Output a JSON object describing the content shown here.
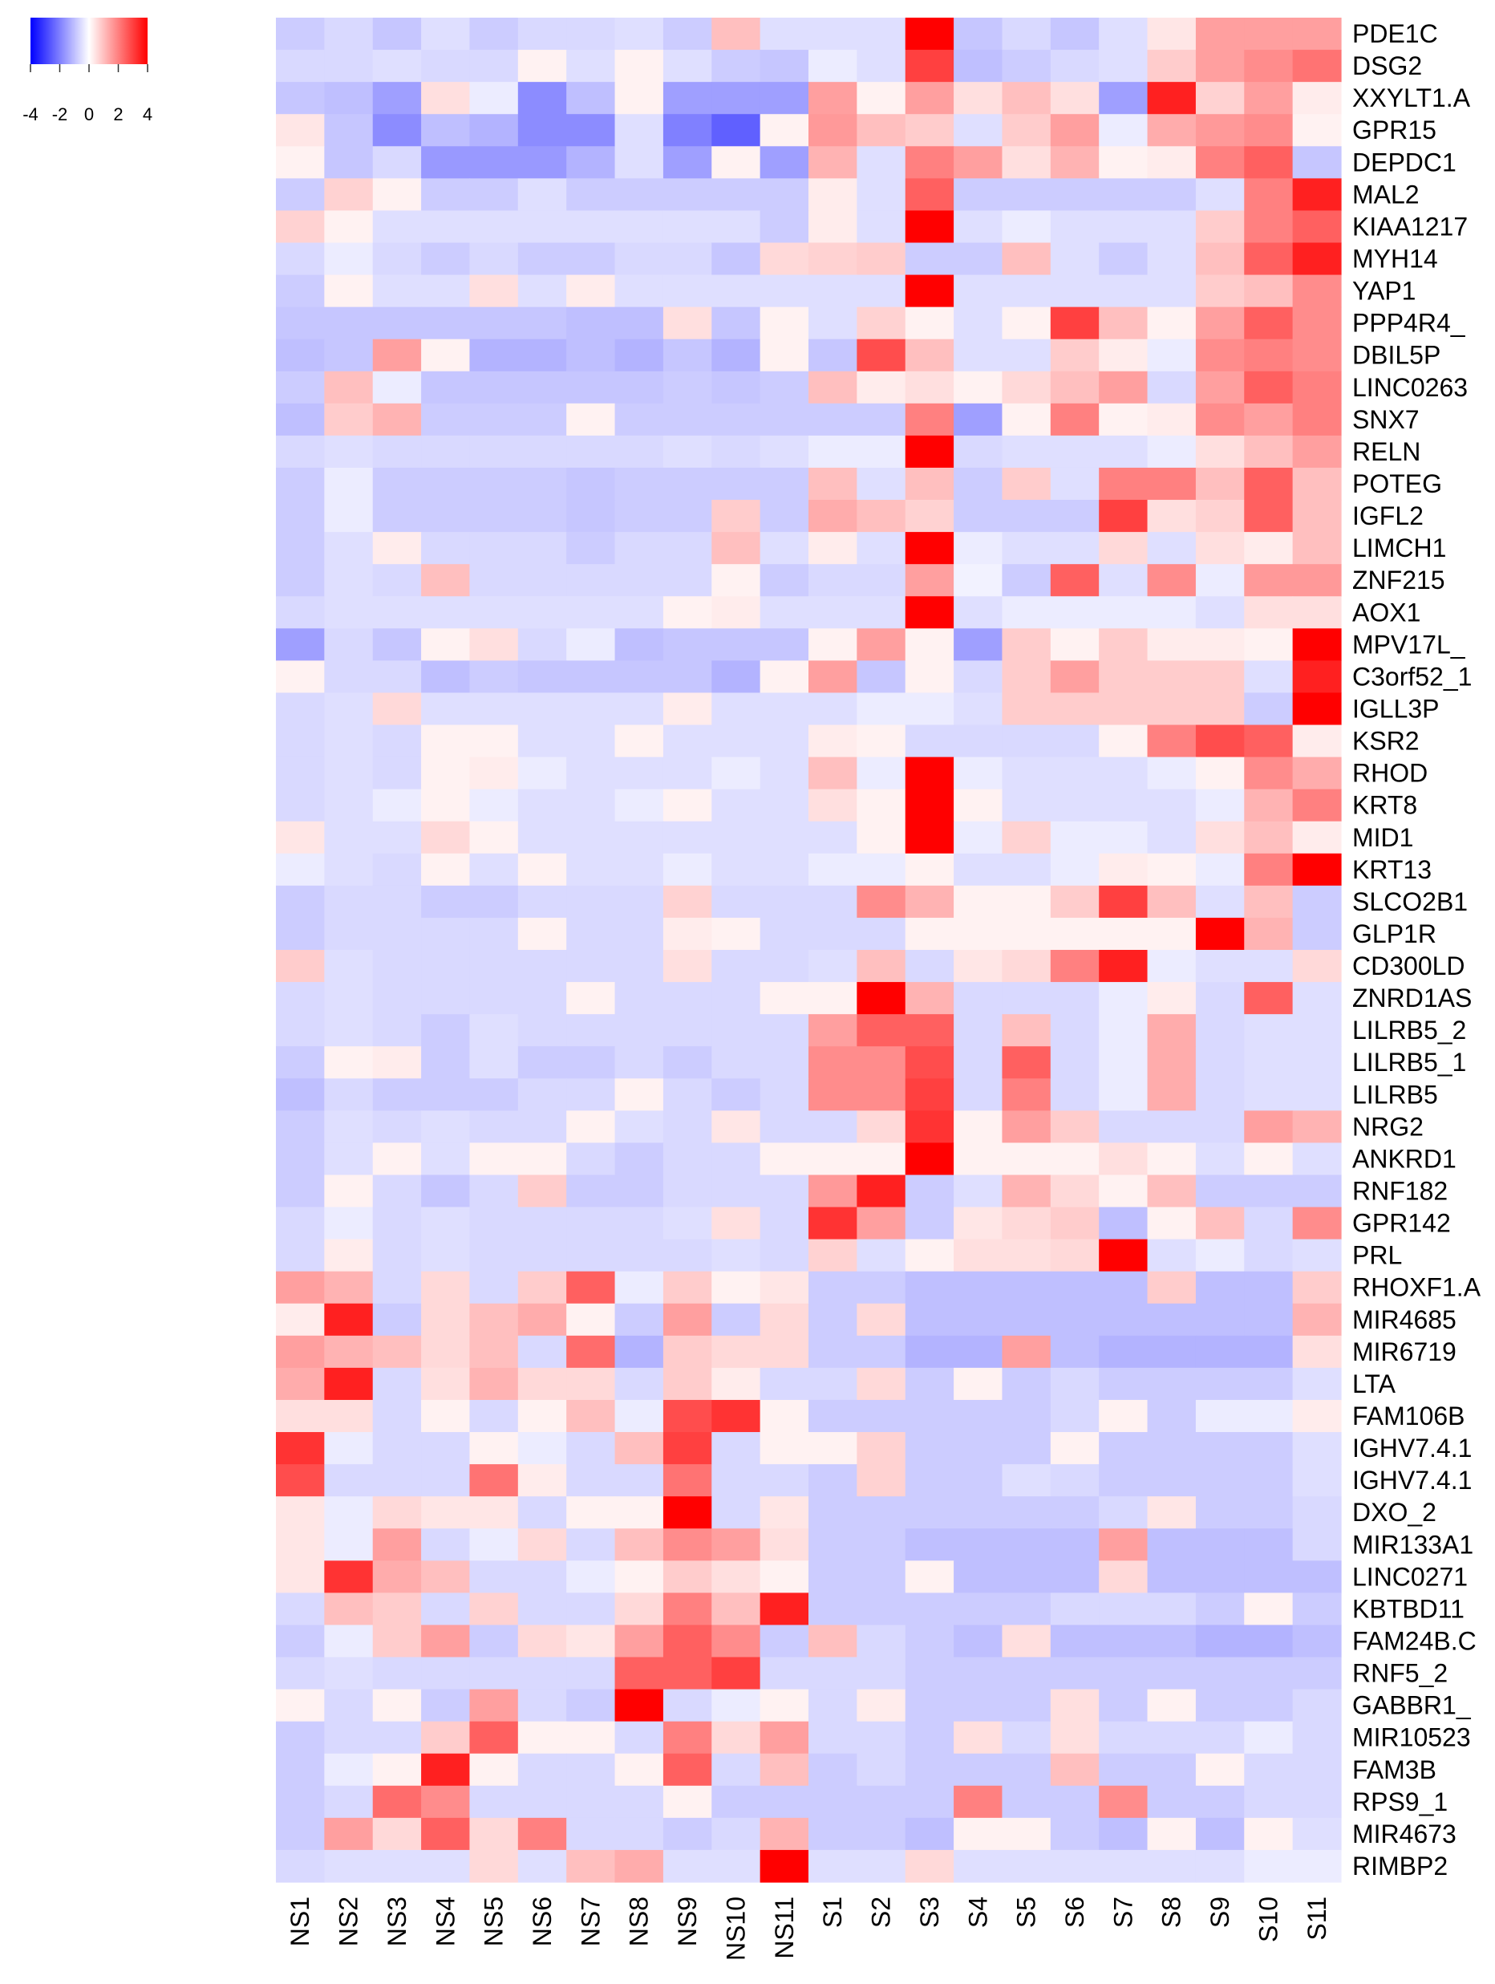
{
  "chart_data": {
    "type": "heatmap",
    "title": "",
    "xlabel": "",
    "ylabel": "",
    "columns": [
      "NS1",
      "NS2",
      "NS3",
      "NS4",
      "NS5",
      "NS6",
      "NS7",
      "NS8",
      "NS9",
      "NS10",
      "NS11",
      "S1",
      "S2",
      "S3",
      "S4",
      "S5",
      "S6",
      "S7",
      "S8",
      "S9",
      "S10",
      "S11"
    ],
    "rows": [
      "PDE1C",
      "DSG2",
      "XXYLT1.A",
      "GPR15",
      "DEPDC1",
      "MAL2",
      "KIAA1217",
      "MYH14",
      "YAP1",
      "PPP4R4_",
      "DBIL5P",
      "LINC0263",
      "SNX7",
      "RELN",
      "POTEG",
      "IGFL2",
      "LIMCH1",
      "ZNF215",
      "AOX1",
      "MPV17L_",
      "C3orf52_1",
      "IGLL3P",
      "KSR2",
      "RHOD",
      "KRT8",
      "MID1",
      "KRT13",
      "SLCO2B1",
      "GLP1R",
      "CD300LD",
      "ZNRD1AS",
      "LILRB5_2",
      "LILRB5_1",
      "LILRB5",
      "NRG2",
      "ANKRD1",
      "RNF182",
      "GPR142",
      "PRL",
      "RHOXF1.A",
      "MIR4685",
      "MIR6719",
      "LTA",
      "FAM106B",
      "IGHV7.4.1",
      "IGHV7.4.1",
      "DXO_2",
      "MIR133A1",
      "LINC0271",
      "KBTBD11",
      "FAM24B.C",
      "RNF5_2",
      "GABBR1_",
      "MIR10523",
      "FAM3B",
      "RPS9_1",
      "MIR4673",
      "RIMBP2"
    ],
    "values": [
      [
        -0.8,
        -0.6,
        -0.9,
        -0.5,
        -0.8,
        -0.6,
        -0.6,
        -0.5,
        -0.8,
        1,
        -0.5,
        -0.5,
        -0.5,
        4,
        -0.9,
        -0.6,
        -0.9,
        -0.5,
        0.4,
        1.5,
        1.5,
        1.5
      ],
      [
        -0.6,
        -0.6,
        -0.5,
        -0.6,
        -0.6,
        0.2,
        -0.5,
        0.2,
        -0.5,
        -0.8,
        -0.9,
        -0.3,
        -0.5,
        3,
        -1,
        -0.8,
        -0.6,
        -0.5,
        0.8,
        1.5,
        1.8,
        2.2
      ],
      [
        -0.9,
        -1,
        -1.5,
        0.5,
        -0.3,
        -1.8,
        -1,
        0.2,
        -1.5,
        -1.5,
        -1.5,
        1.5,
        0.2,
        1.5,
        0.5,
        1,
        0.5,
        -1.5,
        3.5,
        0.7,
        1.5,
        0.3
      ],
      [
        0.4,
        -0.9,
        -1.8,
        -1,
        -1.2,
        -1.8,
        -1.8,
        -0.5,
        -2,
        -2.5,
        0.2,
        1.6,
        1,
        0.8,
        -0.5,
        0.8,
        1.5,
        -0.3,
        1.3,
        1.6,
        1.8,
        0.2
      ],
      [
        0.2,
        -0.9,
        -0.6,
        -1.6,
        -1.6,
        -1.6,
        -1.2,
        -0.5,
        -1.5,
        0.2,
        -1.5,
        1.2,
        -0.5,
        2,
        1.5,
        0.5,
        1.2,
        0.2,
        0.3,
        2,
        2.5,
        -0.9
      ],
      [
        -0.8,
        0.7,
        0.2,
        -0.8,
        -0.8,
        -0.5,
        -0.8,
        -0.8,
        -0.8,
        -0.8,
        -0.8,
        0.3,
        -0.5,
        2.5,
        -0.8,
        -0.8,
        -0.8,
        -0.8,
        -0.8,
        -0.5,
        2,
        3.5
      ],
      [
        0.7,
        0.2,
        -0.5,
        -0.5,
        -0.5,
        -0.5,
        -0.5,
        -0.5,
        -0.5,
        -0.5,
        -0.8,
        0.3,
        -0.5,
        4,
        -0.5,
        -0.3,
        -0.5,
        -0.5,
        -0.5,
        0.8,
        2,
        2.5
      ],
      [
        -0.6,
        -0.3,
        -0.6,
        -0.8,
        -0.6,
        -0.8,
        -0.8,
        -0.6,
        -0.6,
        -0.9,
        0.6,
        0.7,
        0.8,
        -0.8,
        -0.8,
        1,
        -0.5,
        -0.8,
        -0.5,
        1,
        2.5,
        3.5
      ],
      [
        -0.8,
        0.2,
        -0.5,
        -0.5,
        0.5,
        -0.5,
        0.3,
        -0.5,
        -0.5,
        -0.5,
        -0.5,
        -0.5,
        -0.5,
        4,
        -0.5,
        -0.5,
        -0.5,
        -0.5,
        -0.5,
        0.8,
        1,
        1.8
      ],
      [
        -0.9,
        -0.9,
        -0.9,
        -0.9,
        -0.9,
        -0.9,
        -1,
        -1,
        0.5,
        -0.9,
        0.2,
        -0.5,
        0.7,
        0.2,
        -0.5,
        0.2,
        3,
        1,
        0.2,
        1.5,
        2.5,
        1.8
      ],
      [
        -1,
        -0.9,
        1.5,
        0.2,
        -1.2,
        -1.2,
        -1,
        -1.2,
        -0.9,
        -1.2,
        0.2,
        -0.9,
        2.8,
        1,
        -0.5,
        -0.5,
        0.8,
        0.3,
        -0.3,
        1.8,
        2,
        1.8
      ],
      [
        -0.8,
        1,
        -0.3,
        -0.9,
        -0.9,
        -0.9,
        -0.9,
        -0.9,
        -0.8,
        -0.9,
        -0.8,
        1,
        0.3,
        0.5,
        0.2,
        0.6,
        1,
        1.5,
        -0.6,
        1.5,
        2.5,
        2
      ],
      [
        -1,
        0.8,
        1.2,
        -0.8,
        -0.8,
        -0.8,
        0.2,
        -0.8,
        -0.8,
        -0.8,
        -0.8,
        -0.8,
        -0.8,
        2,
        -1.5,
        0.2,
        2,
        0.2,
        0.3,
        1.8,
        1.5,
        2
      ],
      [
        -0.6,
        -0.5,
        -0.6,
        -0.6,
        -0.6,
        -0.6,
        -0.6,
        -0.6,
        -0.5,
        -0.6,
        -0.5,
        -0.3,
        -0.3,
        4,
        -0.6,
        -0.5,
        -0.5,
        -0.5,
        -0.3,
        0.5,
        1,
        1.5
      ],
      [
        -0.8,
        -0.3,
        -0.8,
        -0.8,
        -0.8,
        -0.8,
        -0.9,
        -0.8,
        -0.8,
        -0.8,
        -0.8,
        1,
        -0.5,
        1,
        -0.8,
        0.8,
        -0.5,
        2,
        2,
        1,
        2.5,
        1
      ],
      [
        -0.8,
        -0.3,
        -0.8,
        -0.8,
        -0.8,
        -0.8,
        -0.9,
        -0.8,
        -0.8,
        0.8,
        -0.8,
        1.3,
        1,
        0.7,
        -0.8,
        -0.8,
        -0.8,
        3,
        0.5,
        0.7,
        2.5,
        1
      ],
      [
        -0.8,
        -0.5,
        0.3,
        -0.6,
        -0.6,
        -0.6,
        -0.8,
        -0.6,
        -0.6,
        1,
        -0.5,
        0.3,
        -0.5,
        4,
        -0.3,
        -0.5,
        -0.5,
        0.6,
        -0.5,
        0.5,
        0.3,
        1
      ],
      [
        -0.8,
        -0.5,
        -0.6,
        1,
        -0.6,
        -0.6,
        -0.6,
        -0.6,
        -0.6,
        0.2,
        -0.8,
        -0.6,
        -0.6,
        1.5,
        -0.2,
        -0.8,
        2.5,
        -0.5,
        1.8,
        -0.3,
        1.6,
        1.6
      ],
      [
        -0.6,
        -0.5,
        -0.5,
        -0.5,
        -0.5,
        -0.5,
        -0.5,
        -0.5,
        0.2,
        0.3,
        -0.5,
        -0.5,
        -0.5,
        4,
        -0.5,
        -0.3,
        -0.3,
        -0.3,
        -0.3,
        -0.5,
        0.5,
        0.5
      ],
      [
        -1.5,
        -0.6,
        -0.9,
        0.2,
        0.5,
        -0.6,
        -0.3,
        -1,
        -0.9,
        -0.9,
        -0.9,
        0.2,
        1.5,
        0.2,
        -1.5,
        0.8,
        0.2,
        0.8,
        0.3,
        0.3,
        0.2,
        4
      ],
      [
        0.2,
        -0.6,
        -0.6,
        -1,
        -0.8,
        -0.9,
        -0.9,
        -0.9,
        -0.9,
        -1.2,
        0.2,
        1.5,
        -0.9,
        0.2,
        -0.6,
        0.8,
        1.5,
        0.8,
        0.8,
        0.8,
        -0.5,
        3.5
      ],
      [
        -0.6,
        -0.5,
        0.6,
        -0.5,
        -0.5,
        -0.5,
        -0.5,
        -0.5,
        0.3,
        -0.5,
        -0.5,
        -0.5,
        -0.3,
        -0.3,
        -0.5,
        0.8,
        0.8,
        0.8,
        0.8,
        0.8,
        -0.8,
        4
      ],
      [
        -0.6,
        -0.5,
        -0.6,
        0.2,
        0.2,
        -0.5,
        -0.5,
        0.2,
        -0.5,
        -0.5,
        -0.5,
        0.3,
        0.2,
        -0.6,
        -0.6,
        -0.6,
        -0.6,
        0.2,
        2,
        2.8,
        2.5,
        0.3
      ],
      [
        -0.6,
        -0.5,
        -0.6,
        0.2,
        0.3,
        -0.3,
        -0.5,
        -0.5,
        -0.5,
        -0.3,
        -0.5,
        1,
        -0.3,
        4,
        -0.3,
        -0.5,
        -0.5,
        -0.5,
        -0.3,
        0.2,
        1.8,
        1.3
      ],
      [
        -0.6,
        -0.5,
        -0.3,
        0.2,
        -0.3,
        -0.5,
        -0.5,
        -0.3,
        0.2,
        -0.5,
        -0.5,
        0.5,
        0.2,
        4,
        0.2,
        -0.5,
        -0.5,
        -0.5,
        -0.5,
        -0.3,
        1.2,
        2
      ],
      [
        0.4,
        -0.5,
        -0.5,
        0.6,
        0.2,
        -0.5,
        -0.5,
        -0.5,
        -0.5,
        -0.5,
        -0.5,
        -0.5,
        0.2,
        4,
        -0.3,
        0.7,
        -0.3,
        -0.3,
        -0.5,
        0.5,
        1,
        0.3
      ],
      [
        -0.3,
        -0.5,
        -0.6,
        0.2,
        -0.5,
        0.2,
        -0.5,
        -0.5,
        -0.3,
        -0.5,
        -0.5,
        -0.3,
        -0.3,
        0.2,
        -0.5,
        -0.5,
        -0.3,
        0.3,
        0.2,
        -0.3,
        2,
        4
      ],
      [
        -0.8,
        -0.6,
        -0.6,
        -0.8,
        -0.8,
        -0.6,
        -0.6,
        -0.6,
        0.7,
        -0.6,
        -0.6,
        -0.6,
        1.8,
        1.2,
        0.2,
        0.2,
        0.8,
        3,
        1,
        -0.5,
        1,
        -0.8
      ],
      [
        -0.8,
        -0.6,
        -0.6,
        -0.6,
        -0.6,
        0.2,
        -0.6,
        -0.6,
        0.3,
        0.2,
        -0.6,
        -0.6,
        -0.6,
        0.2,
        0.2,
        0.2,
        0.2,
        0.2,
        0.2,
        4,
        1.2,
        -0.8
      ],
      [
        0.8,
        -0.5,
        -0.6,
        -0.6,
        -0.6,
        -0.6,
        -0.6,
        -0.6,
        0.5,
        -0.6,
        -0.6,
        -0.5,
        1,
        -0.6,
        0.4,
        0.6,
        2,
        3.5,
        -0.3,
        -0.5,
        -0.5,
        0.6
      ],
      [
        -0.6,
        -0.5,
        -0.6,
        -0.6,
        -0.6,
        -0.6,
        0.2,
        -0.6,
        -0.6,
        -0.6,
        0.2,
        0.2,
        4,
        1.2,
        -0.6,
        -0.6,
        -0.6,
        -0.3,
        0.3,
        -0.6,
        2.5,
        -0.5
      ],
      [
        -0.6,
        -0.5,
        -0.6,
        -0.8,
        -0.5,
        -0.6,
        -0.6,
        -0.6,
        -0.6,
        -0.6,
        -0.6,
        1.5,
        2.5,
        2.5,
        -0.6,
        1,
        -0.6,
        -0.3,
        1.3,
        -0.6,
        -0.5,
        -0.5
      ],
      [
        -0.8,
        0.2,
        0.3,
        -0.8,
        -0.5,
        -0.8,
        -0.8,
        -0.6,
        -0.8,
        -0.6,
        -0.6,
        1.8,
        1.8,
        2.8,
        -0.6,
        2.5,
        -0.6,
        -0.3,
        1.3,
        -0.6,
        -0.5,
        -0.5
      ],
      [
        -1,
        -0.6,
        -0.8,
        -0.8,
        -0.8,
        -0.6,
        -0.6,
        0.2,
        -0.6,
        -0.8,
        -0.6,
        1.8,
        1.8,
        3,
        -0.6,
        2,
        -0.6,
        -0.3,
        1.3,
        -0.6,
        -0.5,
        -0.5
      ],
      [
        -0.8,
        -0.5,
        -0.6,
        -0.5,
        -0.6,
        -0.6,
        0.2,
        -0.5,
        -0.6,
        0.4,
        -0.6,
        -0.6,
        0.6,
        3.2,
        0.2,
        1.5,
        0.8,
        -0.6,
        -0.6,
        -0.6,
        1.5,
        1.2
      ],
      [
        -0.8,
        -0.5,
        0.2,
        -0.5,
        0.2,
        0.2,
        -0.6,
        -0.8,
        -0.6,
        -0.6,
        0.2,
        0.2,
        0.2,
        4,
        0.2,
        0.2,
        0.2,
        0.5,
        0.2,
        -0.5,
        0.2,
        -0.5
      ],
      [
        -0.8,
        0.2,
        -0.6,
        -0.9,
        -0.6,
        0.8,
        -0.8,
        -0.8,
        -0.6,
        -0.6,
        -0.6,
        1.6,
        3.5,
        -0.8,
        -0.5,
        1.2,
        0.6,
        0.2,
        1,
        -0.8,
        -0.8,
        -0.8
      ],
      [
        -0.6,
        -0.3,
        -0.6,
        -0.5,
        -0.6,
        -0.6,
        -0.6,
        -0.6,
        -0.5,
        0.5,
        -0.6,
        3.2,
        1.5,
        -0.8,
        0.4,
        0.6,
        0.8,
        -1,
        0.2,
        1,
        -0.6,
        1.8
      ],
      [
        -0.6,
        0.3,
        -0.6,
        -0.5,
        -0.6,
        -0.6,
        -0.6,
        -0.6,
        -0.6,
        -0.5,
        -0.6,
        0.7,
        -0.5,
        0.2,
        0.5,
        0.5,
        0.6,
        4,
        -0.5,
        -0.3,
        -0.6,
        -0.5
      ],
      [
        1.5,
        1.2,
        -0.6,
        0.6,
        -0.6,
        0.8,
        2.5,
        -0.3,
        0.8,
        0.2,
        0.4,
        -0.8,
        -0.8,
        -1,
        -1,
        -1,
        -1,
        -1,
        0.8,
        -1,
        -1,
        0.8
      ],
      [
        0.3,
        3.5,
        -0.8,
        0.6,
        1,
        1.3,
        0.2,
        -0.8,
        1.5,
        -0.8,
        0.6,
        -0.8,
        0.6,
        -1,
        -1,
        -1,
        -1,
        -1,
        -1,
        -1,
        -1,
        1.2
      ],
      [
        1.5,
        1.2,
        1,
        0.6,
        1,
        -0.6,
        2.3,
        -1.2,
        0.8,
        0.6,
        0.6,
        -0.8,
        -0.8,
        -1.2,
        -1.2,
        1.5,
        -1,
        -1.2,
        -1.2,
        -1.2,
        -1.2,
        0.5
      ],
      [
        1.3,
        3.5,
        -0.6,
        0.5,
        1.2,
        0.6,
        0.6,
        -0.6,
        0.8,
        0.3,
        -0.6,
        -0.6,
        0.6,
        -0.8,
        0.2,
        -0.8,
        -0.6,
        -0.8,
        -0.8,
        -0.8,
        -0.8,
        -0.5
      ],
      [
        0.5,
        0.5,
        -0.6,
        0.2,
        -0.6,
        0.2,
        1,
        -0.3,
        2.8,
        3.2,
        0.2,
        -0.8,
        -0.8,
        -0.8,
        -0.8,
        -0.8,
        -0.6,
        0.2,
        -0.8,
        -0.3,
        -0.3,
        0.3
      ],
      [
        3.2,
        -0.3,
        -0.6,
        -0.6,
        0.2,
        -0.3,
        -0.6,
        1,
        3,
        -0.6,
        0.2,
        0.2,
        0.7,
        -0.8,
        -0.8,
        -0.8,
        0.2,
        -0.8,
        -0.8,
        -0.8,
        -0.8,
        -0.5
      ],
      [
        2.8,
        -0.6,
        -0.6,
        -0.6,
        2.2,
        0.3,
        -0.6,
        -0.6,
        2.2,
        -0.6,
        -0.6,
        -0.8,
        0.7,
        -0.8,
        -0.8,
        -0.5,
        -0.6,
        -0.8,
        -0.8,
        -0.8,
        -0.8,
        -0.5
      ],
      [
        0.4,
        -0.3,
        0.6,
        0.4,
        0.4,
        -0.6,
        0.2,
        0.2,
        4,
        -0.6,
        0.4,
        -0.8,
        -0.8,
        -0.8,
        -0.8,
        -0.8,
        -0.8,
        -0.6,
        0.4,
        -0.8,
        -0.8,
        -0.6
      ],
      [
        0.4,
        -0.3,
        1.5,
        -0.6,
        -0.3,
        0.6,
        -0.6,
        1,
        1.8,
        1.5,
        0.5,
        -0.8,
        -0.8,
        -1,
        -1,
        -1,
        -1,
        1.5,
        -1,
        -1,
        -1,
        -0.6
      ],
      [
        0.4,
        3.2,
        1.3,
        1,
        -0.6,
        -0.6,
        -0.3,
        0.2,
        0.8,
        0.5,
        0.2,
        -0.8,
        -0.8,
        0.2,
        -1,
        -1,
        -1,
        0.6,
        -1,
        -1,
        -1,
        -1
      ],
      [
        -0.6,
        1,
        0.8,
        -0.6,
        0.7,
        -0.6,
        -0.6,
        0.6,
        2,
        1,
        3.5,
        -0.8,
        -0.8,
        -0.8,
        -0.8,
        -0.8,
        -0.6,
        -0.6,
        -0.6,
        -0.8,
        0.2,
        -0.8
      ],
      [
        -0.8,
        -0.3,
        0.8,
        1.5,
        -0.8,
        0.6,
        0.4,
        1.5,
        2.5,
        1.8,
        -0.8,
        1,
        -0.6,
        -0.8,
        -1,
        0.5,
        -1,
        -1,
        -1,
        -1.2,
        -1.2,
        -1
      ],
      [
        -0.6,
        -0.5,
        -0.6,
        -0.6,
        -0.6,
        -0.6,
        -0.6,
        2.5,
        2.5,
        3,
        -0.6,
        -0.6,
        -0.6,
        -0.8,
        -0.8,
        -0.8,
        -0.8,
        -0.8,
        -0.8,
        -0.8,
        -0.8,
        -0.8
      ],
      [
        0.2,
        -0.6,
        0.2,
        -0.8,
        1.5,
        -0.6,
        -0.8,
        4,
        -0.6,
        -0.3,
        0.2,
        -0.6,
        0.3,
        -0.8,
        -0.8,
        -0.8,
        0.5,
        -0.8,
        0.2,
        -0.8,
        -0.8,
        -0.6
      ],
      [
        -0.8,
        -0.6,
        -0.6,
        0.8,
        2.5,
        0.2,
        0.2,
        -0.6,
        2,
        0.6,
        1.5,
        -0.6,
        -0.6,
        -0.8,
        0.5,
        -0.6,
        0.5,
        -0.6,
        -0.6,
        -0.6,
        -0.3,
        -0.6
      ],
      [
        -0.8,
        -0.3,
        0.2,
        3.5,
        0.2,
        -0.6,
        -0.6,
        0.2,
        2.5,
        -0.6,
        1,
        -0.8,
        -0.6,
        -0.8,
        -0.8,
        -0.8,
        1,
        -0.8,
        -0.8,
        0.2,
        -0.6,
        -0.6
      ],
      [
        -0.8,
        -0.6,
        2.3,
        1.8,
        -0.6,
        -0.6,
        -0.6,
        -0.6,
        0.2,
        -0.8,
        -0.8,
        -0.8,
        -0.8,
        -0.8,
        2,
        -0.8,
        -0.8,
        1.8,
        -0.8,
        -0.8,
        -0.6,
        -0.6
      ],
      [
        -0.8,
        1.5,
        0.6,
        2.5,
        0.6,
        2,
        -0.6,
        -0.6,
        -0.8,
        -0.6,
        1.2,
        -0.8,
        -0.8,
        -1,
        0.2,
        0.2,
        -0.8,
        -1,
        0.2,
        -1,
        0.2,
        -0.5
      ],
      [
        -0.6,
        -0.5,
        -0.5,
        -0.5,
        0.6,
        -0.5,
        1,
        1.3,
        -0.5,
        -0.5,
        4,
        -0.5,
        -0.5,
        0.6,
        -0.5,
        -0.5,
        -0.5,
        -0.5,
        -0.5,
        -0.5,
        -0.3,
        -0.3
      ]
    ],
    "colorscale": {
      "min": -4,
      "max": 4,
      "low_color": "#0000ff",
      "mid_color": "#ffffff",
      "high_color": "#ff0000",
      "ticks": [
        "-4",
        "-2",
        "0",
        "2",
        "4"
      ]
    }
  }
}
